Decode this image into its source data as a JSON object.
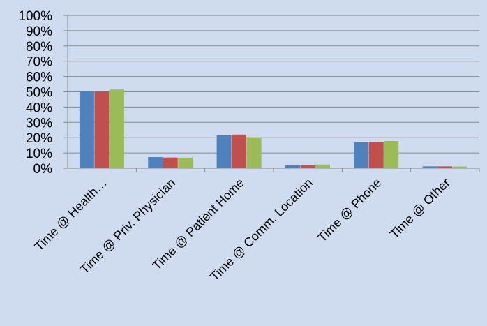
{
  "chart_data": {
    "type": "bar",
    "categories": [
      "Time @ Health…",
      "Time @ Priv. Physician",
      "Time @ Patient Home",
      "Time @ Comm. Location",
      "Time @ Phone",
      "Time @ Other"
    ],
    "series": [
      {
        "color": "#4f81bd",
        "values": [
          50.5,
          7.3,
          21.5,
          2.0,
          17.0,
          1.2
        ]
      },
      {
        "color": "#c0504d",
        "values": [
          50.2,
          7.0,
          22.0,
          2.0,
          17.2,
          1.2
        ]
      },
      {
        "color": "#9bbb59",
        "values": [
          51.5,
          6.9,
          20.2,
          2.4,
          17.8,
          1.1
        ]
      }
    ],
    "ylim": [
      0,
      100
    ],
    "y_ticks": [
      "0%",
      "10%",
      "20%",
      "30%",
      "40%",
      "50%",
      "60%",
      "70%",
      "80%",
      "90%",
      "100%"
    ],
    "grid": true,
    "legend": "none",
    "background": "#cfdcf0"
  }
}
